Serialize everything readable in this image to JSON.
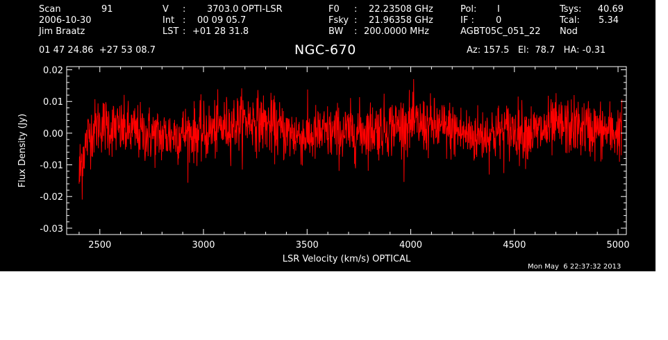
{
  "header": {
    "col1": {
      "scan_label": "Scan",
      "scan_value": "91",
      "date": "2006-10-30",
      "observer": "Jim Braatz"
    },
    "col2": {
      "v_label": "V",
      "v_value": "3703.0 OPTI-LSR",
      "int_label": "Int",
      "int_value": "00 09 05.7",
      "lst_label": "LST",
      "lst_value": "+01 28 31.8"
    },
    "col3": {
      "f0_label": "F0",
      "f0_value": "22.23508 GHz",
      "fsky_label": "Fsky",
      "fsky_value": "21.96358 GHz",
      "bw_label": "BW",
      "bw_value": "200.0000 MHz"
    },
    "col4": {
      "pol_label": "Pol:",
      "pol_value": "I",
      "if_label": "IF :",
      "if_value": "0",
      "project": "AGBT05C_051_22"
    },
    "col5": {
      "tsys_label": "Tsys:",
      "tsys_value": "40.69",
      "tcal_label": "Tcal:",
      "tcal_value": "5.34",
      "mode": "Nod"
    },
    "coords": "01 47 24.86  +27 53 08.7",
    "source": "NGC-670",
    "pointing": "Az: 157.5   El:  78.7   HA: -0.31",
    "timestamp": "Mon May  6 22:37:32 2013"
  },
  "chart_data": {
    "type": "line",
    "xlabel": "LSR Velocity (km/s) OPTICAL",
    "ylabel": "Flux Density (Jy)",
    "xlim": [
      2340,
      5040
    ],
    "ylim": [
      -0.032,
      0.021
    ],
    "xticks": [
      2500,
      3000,
      3500,
      4000,
      4500,
      5000
    ],
    "xtick_labels": [
      "2500",
      "3000",
      "3500",
      "4000",
      "4500",
      "5000"
    ],
    "yticks": [
      -0.03,
      -0.02,
      -0.01,
      0.0,
      0.01,
      0.02
    ],
    "ytick_labels": [
      "-0.03",
      "-0.02",
      "-0.01",
      "0.00",
      "0.01",
      "0.02"
    ],
    "series": [
      {
        "color": "#ff0000",
        "baseline_x": [
          2400,
          2420,
          2450,
          2500,
          2600,
          2700,
          2800,
          2900,
          3000,
          3100,
          3200,
          3250,
          3300,
          3400,
          3500,
          3600,
          3700,
          3800,
          3900,
          4000,
          4100,
          4200,
          4300,
          4400,
          4500,
          4600,
          4700,
          4800,
          4900,
          5000,
          5020
        ],
        "baseline_y": [
          -0.014,
          -0.006,
          0.0,
          0.003,
          0.001,
          0.0,
          -0.001,
          0.0,
          0.0,
          0.002,
          0.004,
          0.004,
          0.003,
          0.0,
          -0.001,
          0.0,
          0.0,
          0.001,
          0.002,
          0.003,
          0.002,
          0.001,
          -0.001,
          0.0,
          0.001,
          0.0,
          0.002,
          0.002,
          0.001,
          0.0,
          0.003
        ],
        "noise_rms": 0.0045,
        "x_step": 1.5
      }
    ]
  }
}
